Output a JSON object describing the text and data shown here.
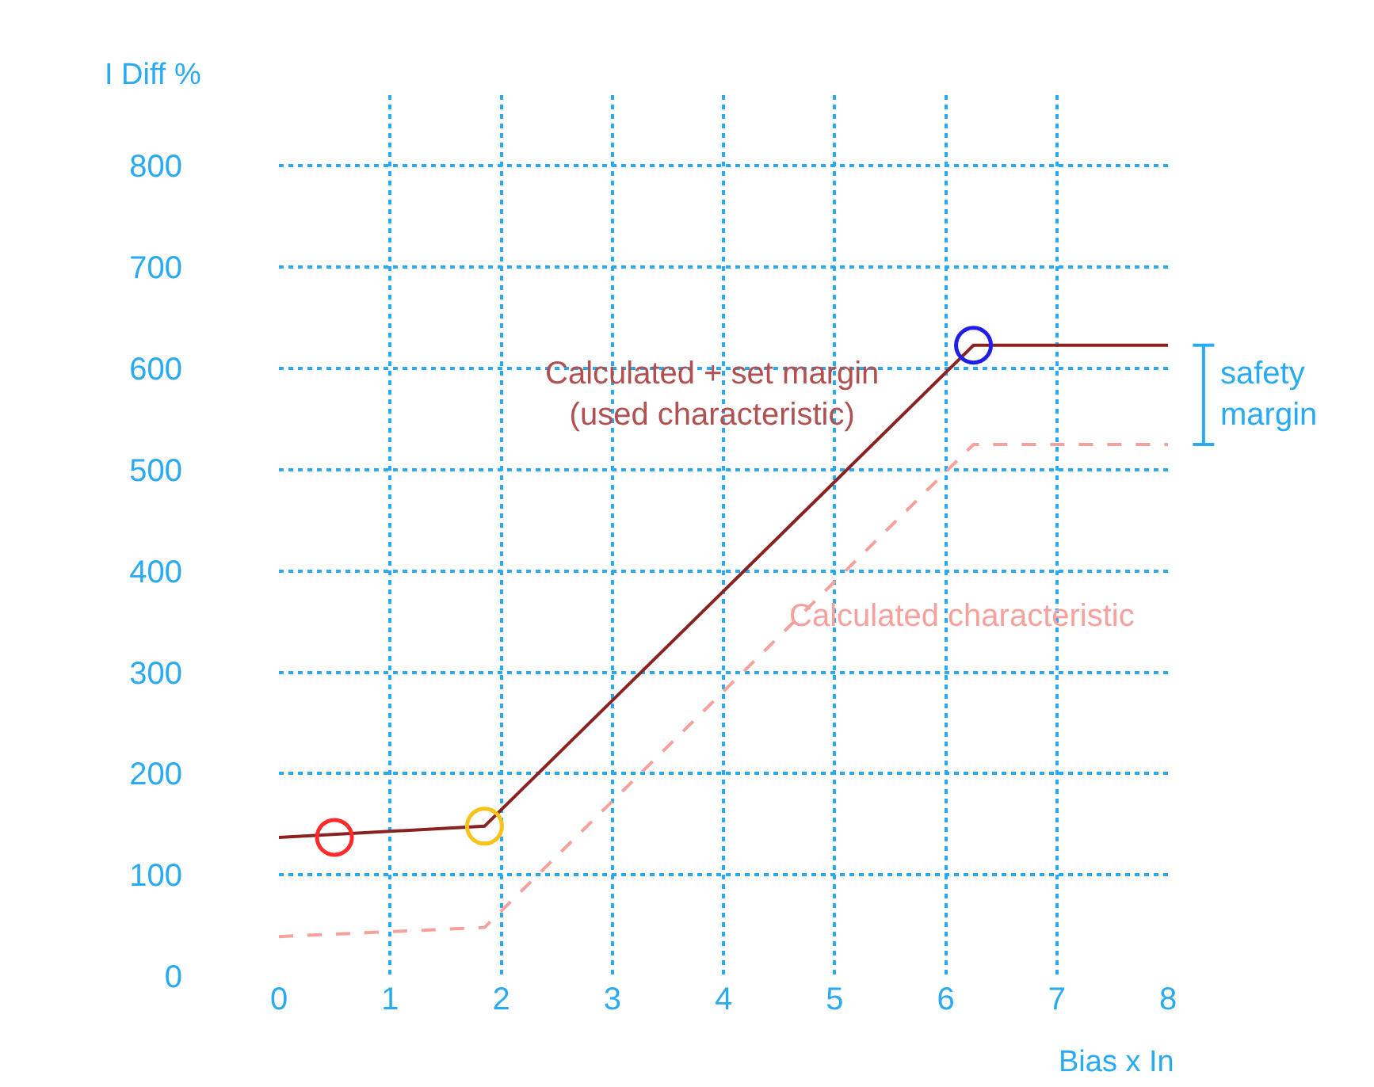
{
  "chart_data": {
    "type": "line",
    "xlabel": "Bias x In",
    "ylabel": "I Diff %",
    "series": [
      {
        "color": "#8b2222",
        "line_style": "solid",
        "x": [
          0,
          1.85,
          6.25,
          8
        ],
        "values": [
          137,
          148,
          623,
          623
        ]
      },
      {
        "color": "#f6a19c",
        "line_style": "dashed",
        "x": [
          0,
          1.85,
          6.25,
          8
        ],
        "values": [
          39,
          48,
          525,
          525
        ]
      },
      {
        "type": "scatter",
        "marker": "circle",
        "colors": [
          "#ff2a2a",
          "#f7c21a",
          "#1f1fe8"
        ],
        "x": [
          0.5,
          1.85,
          6.25
        ],
        "values": [
          137,
          148,
          623
        ]
      }
    ],
    "xlim": [
      0,
      8
    ],
    "xticks": [
      0,
      1,
      2,
      3,
      4,
      5,
      6,
      7,
      8
    ],
    "ylim": [
      0,
      870
    ],
    "yticks": [
      0,
      100,
      200,
      300,
      400,
      500,
      600,
      700,
      800
    ],
    "grid": true,
    "annotations": [
      "Calculated + set margin\n(used characteristic)",
      "Calculated characteristic",
      "safety\nmargin"
    ]
  }
}
